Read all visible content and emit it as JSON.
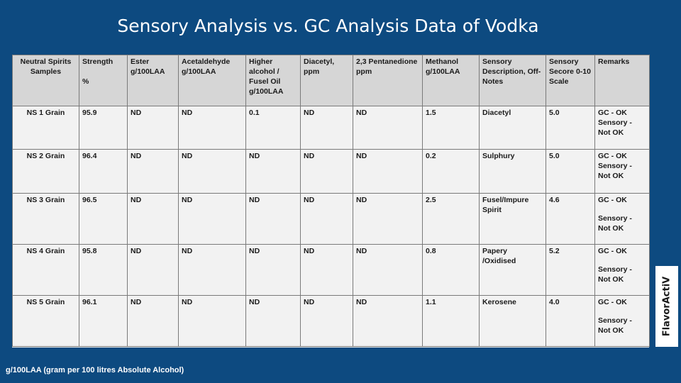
{
  "title": "Sensory Analysis vs. GC Analysis Data of Vodka",
  "table": {
    "headers": [
      "Neutral Spirits Samples",
      "Strength\n\n%",
      "Ester g/100LAA",
      "Acetaldehyde g/100LAA",
      "Higher alcohol / Fusel Oil g/100LAA",
      "Diacetyl, ppm",
      "2,3 Pentanedione ppm",
      "Methanol g/100LAA",
      "Sensory Description, Off- Notes",
      "Sensory Secore 0-10 Scale",
      "Remarks"
    ],
    "rows": [
      {
        "sample": "NS 1 Grain",
        "strength": "95.9",
        "ester": "ND",
        "acetaldehyde": "ND",
        "higher_alcohol": "0.1",
        "diacetyl": "ND",
        "pentanedione": "ND",
        "methanol": "1.5",
        "description": "Diacetyl",
        "score": "5.0",
        "remark_gc": "GC - OK",
        "remark_sensory": "Sensory - Not OK"
      },
      {
        "sample": "NS 2 Grain",
        "strength": "96.4",
        "ester": "ND",
        "acetaldehyde": "ND",
        "higher_alcohol": "ND",
        "diacetyl": "ND",
        "pentanedione": "ND",
        "methanol": "0.2",
        "description": "Sulphury",
        "score": "5.0",
        "remark_gc": "GC - OK",
        "remark_sensory": "Sensory - Not OK"
      },
      {
        "sample": "NS 3 Grain",
        "strength": "96.5",
        "ester": "ND",
        "acetaldehyde": "ND",
        "higher_alcohol": "ND",
        "diacetyl": "ND",
        "pentanedione": "ND",
        "methanol": "2.5",
        "description": "Fusel/Impure Spirit",
        "score": "4.6",
        "remark_gc": "GC - OK",
        "remark_sensory": "Sensory - Not OK"
      },
      {
        "sample": "NS 4 Grain",
        "strength": "95.8",
        "ester": "ND",
        "acetaldehyde": "ND",
        "higher_alcohol": "ND",
        "diacetyl": "ND",
        "pentanedione": "ND",
        "methanol": "0.8",
        "description": "Papery /Oxidised",
        "score": "5.2",
        "remark_gc": "GC - OK",
        "remark_sensory": "Sensory - Not OK"
      },
      {
        "sample": "NS 5 Grain",
        "strength": "96.1",
        "ester": "ND",
        "acetaldehyde": "ND",
        "higher_alcohol": "ND",
        "diacetyl": "ND",
        "pentanedione": "ND",
        "methanol": "1.1",
        "description": "Kerosene",
        "score": "4.0",
        "remark_gc": "GC - OK",
        "remark_sensory": "Sensory - Not OK"
      }
    ]
  },
  "footnote": "g/100LAA (gram per 100 litres Absolute Alcohol)",
  "logo": {
    "text": "FlavorActiV"
  }
}
